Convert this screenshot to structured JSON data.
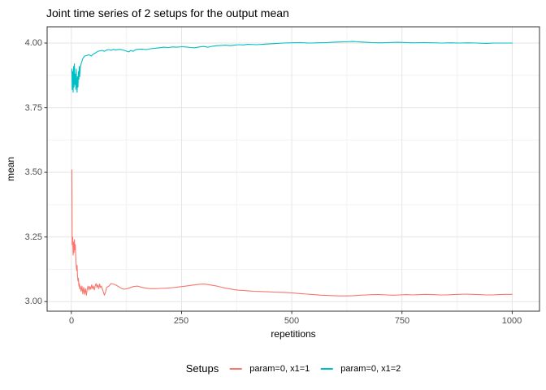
{
  "chart_data": {
    "type": "line",
    "title": "Joint time series of 2 setups for the output mean",
    "xlabel": "repetitions",
    "ylabel": "mean",
    "x_ticks": {
      "values": [
        0,
        250,
        500,
        750,
        1000
      ],
      "labels": [
        "0",
        "250",
        "500",
        "750",
        "1000"
      ]
    },
    "y_ticks": {
      "values": [
        3.0,
        3.25,
        3.5,
        3.75,
        4.0
      ],
      "labels": [
        "3.00",
        "3.25",
        "3.50",
        "3.75",
        "4.00"
      ]
    },
    "xlim": [
      -55,
      1062
    ],
    "ylim": [
      2.963,
      4.063
    ],
    "grid": "major-and-minor",
    "legend": {
      "title": "Setups",
      "position": "bottom"
    },
    "series": [
      {
        "name": "param=0, x1=1",
        "color": "#F8766D",
        "points": [
          [
            1,
            3.51
          ],
          [
            2,
            3.22
          ],
          [
            3,
            3.25
          ],
          [
            4,
            3.18
          ],
          [
            5,
            3.23
          ],
          [
            6,
            3.19
          ],
          [
            7,
            3.24
          ],
          [
            8,
            3.2
          ],
          [
            9,
            3.22
          ],
          [
            10,
            3.17
          ],
          [
            11,
            3.14
          ],
          [
            12,
            3.12
          ],
          [
            13,
            3.14
          ],
          [
            14,
            3.1
          ],
          [
            15,
            3.08
          ],
          [
            16,
            3.09
          ],
          [
            17,
            3.06
          ],
          [
            18,
            3.07
          ],
          [
            19,
            3.05
          ],
          [
            20,
            3.06
          ],
          [
            22,
            3.04
          ],
          [
            24,
            3.06
          ],
          [
            26,
            3.03
          ],
          [
            28,
            3.055
          ],
          [
            30,
            3.028
          ],
          [
            32,
            3.05
          ],
          [
            34,
            3.025
          ],
          [
            36,
            3.05
          ],
          [
            38,
            3.06
          ],
          [
            40,
            3.045
          ],
          [
            42,
            3.058
          ],
          [
            44,
            3.048
          ],
          [
            46,
            3.065
          ],
          [
            48,
            3.05
          ],
          [
            50,
            3.06
          ],
          [
            52,
            3.045
          ],
          [
            54,
            3.06
          ],
          [
            56,
            3.07
          ],
          [
            58,
            3.055
          ],
          [
            60,
            3.065
          ],
          [
            62,
            3.05
          ],
          [
            64,
            3.068
          ],
          [
            66,
            3.055
          ],
          [
            68,
            3.06
          ],
          [
            70,
            3.05
          ],
          [
            72,
            3.04
          ],
          [
            75,
            3.025
          ],
          [
            78,
            3.04
          ],
          [
            80,
            3.055
          ],
          [
            85,
            3.06
          ],
          [
            90,
            3.07
          ],
          [
            95,
            3.068
          ],
          [
            100,
            3.065
          ],
          [
            105,
            3.06
          ],
          [
            110,
            3.055
          ],
          [
            115,
            3.05
          ],
          [
            120,
            3.048
          ],
          [
            130,
            3.052
          ],
          [
            140,
            3.058
          ],
          [
            150,
            3.06
          ],
          [
            160,
            3.055
          ],
          [
            170,
            3.052
          ],
          [
            180,
            3.05
          ],
          [
            190,
            3.05
          ],
          [
            200,
            3.051
          ],
          [
            215,
            3.052
          ],
          [
            230,
            3.054
          ],
          [
            245,
            3.057
          ],
          [
            260,
            3.06
          ],
          [
            275,
            3.064
          ],
          [
            290,
            3.067
          ],
          [
            300,
            3.068
          ],
          [
            310,
            3.066
          ],
          [
            320,
            3.063
          ],
          [
            330,
            3.06
          ],
          [
            340,
            3.056
          ],
          [
            350,
            3.052
          ],
          [
            360,
            3.049
          ],
          [
            370,
            3.046
          ],
          [
            380,
            3.044
          ],
          [
            390,
            3.043
          ],
          [
            400,
            3.042
          ],
          [
            415,
            3.04
          ],
          [
            430,
            3.039
          ],
          [
            445,
            3.038
          ],
          [
            460,
            3.037
          ],
          [
            475,
            3.036
          ],
          [
            490,
            3.035
          ],
          [
            505,
            3.033
          ],
          [
            520,
            3.031
          ],
          [
            535,
            3.029
          ],
          [
            550,
            3.027
          ],
          [
            565,
            3.025
          ],
          [
            580,
            3.024
          ],
          [
            595,
            3.023
          ],
          [
            610,
            3.022
          ],
          [
            625,
            3.022
          ],
          [
            640,
            3.023
          ],
          [
            655,
            3.025
          ],
          [
            670,
            3.026
          ],
          [
            685,
            3.027
          ],
          [
            700,
            3.027
          ],
          [
            715,
            3.026
          ],
          [
            730,
            3.025
          ],
          [
            745,
            3.026
          ],
          [
            760,
            3.027
          ],
          [
            775,
            3.026
          ],
          [
            790,
            3.027
          ],
          [
            805,
            3.028
          ],
          [
            820,
            3.027
          ],
          [
            835,
            3.026
          ],
          [
            850,
            3.026
          ],
          [
            865,
            3.027
          ],
          [
            880,
            3.028
          ],
          [
            895,
            3.029
          ],
          [
            910,
            3.028
          ],
          [
            925,
            3.027
          ],
          [
            940,
            3.026
          ],
          [
            955,
            3.026
          ],
          [
            970,
            3.027
          ],
          [
            985,
            3.028
          ],
          [
            1000,
            3.028
          ]
        ]
      },
      {
        "name": "param=0, x1=2",
        "color": "#00BFC4",
        "points": [
          [
            1,
            3.9
          ],
          [
            2,
            3.82
          ],
          [
            3,
            3.89
          ],
          [
            4,
            3.81
          ],
          [
            5,
            3.91
          ],
          [
            6,
            3.83
          ],
          [
            7,
            3.92
          ],
          [
            8,
            3.84
          ],
          [
            9,
            3.88
          ],
          [
            10,
            3.82
          ],
          [
            11,
            3.9
          ],
          [
            12,
            3.85
          ],
          [
            13,
            3.81
          ],
          [
            14,
            3.87
          ],
          [
            15,
            3.83
          ],
          [
            16,
            3.89
          ],
          [
            17,
            3.86
          ],
          [
            18,
            3.91
          ],
          [
            19,
            3.87
          ],
          [
            20,
            3.9
          ],
          [
            22,
            3.92
          ],
          [
            24,
            3.93
          ],
          [
            26,
            3.94
          ],
          [
            28,
            3.945
          ],
          [
            30,
            3.95
          ],
          [
            35,
            3.952
          ],
          [
            40,
            3.955
          ],
          [
            45,
            3.95
          ],
          [
            50,
            3.958
          ],
          [
            55,
            3.962
          ],
          [
            60,
            3.968
          ],
          [
            65,
            3.97
          ],
          [
            70,
            3.972
          ],
          [
            75,
            3.968
          ],
          [
            80,
            3.973
          ],
          [
            85,
            3.975
          ],
          [
            90,
            3.972
          ],
          [
            95,
            3.976
          ],
          [
            100,
            3.973
          ],
          [
            110,
            3.976
          ],
          [
            120,
            3.972
          ],
          [
            130,
            3.966
          ],
          [
            135,
            3.972
          ],
          [
            140,
            3.968
          ],
          [
            145,
            3.974
          ],
          [
            150,
            3.976
          ],
          [
            160,
            3.977
          ],
          [
            170,
            3.975
          ],
          [
            180,
            3.978
          ],
          [
            190,
            3.98
          ],
          [
            200,
            3.982
          ],
          [
            210,
            3.984
          ],
          [
            220,
            3.983
          ],
          [
            230,
            3.985
          ],
          [
            240,
            3.984
          ],
          [
            250,
            3.986
          ],
          [
            260,
            3.985
          ],
          [
            270,
            3.983
          ],
          [
            280,
            3.982
          ],
          [
            290,
            3.985
          ],
          [
            300,
            3.987
          ],
          [
            310,
            3.984
          ],
          [
            320,
            3.988
          ],
          [
            330,
            3.99
          ],
          [
            340,
            3.991
          ],
          [
            350,
            3.992
          ],
          [
            360,
            3.99
          ],
          [
            370,
            3.992
          ],
          [
            380,
            3.994
          ],
          [
            390,
            3.993
          ],
          [
            400,
            3.995
          ],
          [
            420,
            3.994
          ],
          [
            440,
            3.996
          ],
          [
            460,
            3.998
          ],
          [
            480,
            4.0
          ],
          [
            500,
            4.001
          ],
          [
            520,
            4.002
          ],
          [
            540,
            4.0
          ],
          [
            560,
            4.001
          ],
          [
            580,
            4.002
          ],
          [
            600,
            4.004
          ],
          [
            620,
            4.005
          ],
          [
            640,
            4.006
          ],
          [
            650,
            4.005
          ],
          [
            660,
            4.004
          ],
          [
            680,
            4.002
          ],
          [
            700,
            4.001
          ],
          [
            720,
            4.002
          ],
          [
            740,
            4.003
          ],
          [
            760,
            4.002
          ],
          [
            780,
            4.001
          ],
          [
            800,
            4.002
          ],
          [
            820,
            4.001
          ],
          [
            840,
            4.0
          ],
          [
            860,
            4.001
          ],
          [
            880,
            4.0
          ],
          [
            900,
            4.001
          ],
          [
            920,
            4.0
          ],
          [
            940,
            3.999
          ],
          [
            960,
            4.0
          ],
          [
            980,
            4.0
          ],
          [
            1000,
            4.0
          ]
        ]
      }
    ],
    "style": {
      "panel_border_color": "#333333",
      "grid_major_color": "#e5e5e5",
      "grid_minor_color": "#f2f2f2",
      "tick_color": "#333333",
      "tick_label_color": "#4d4d4d"
    }
  }
}
